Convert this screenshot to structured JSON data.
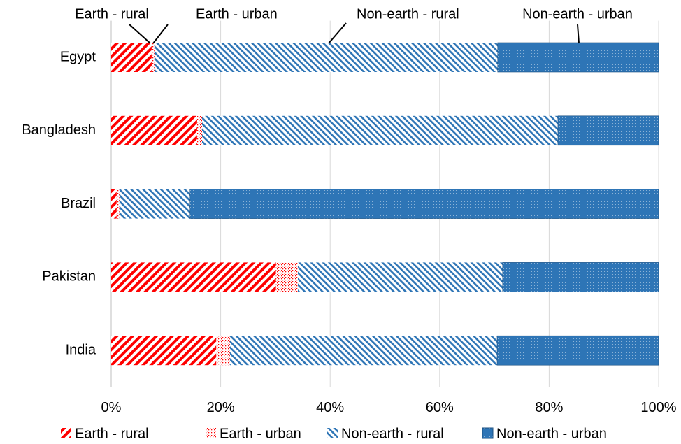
{
  "chart_data": {
    "type": "stacked-bar-horizontal",
    "categories": [
      "Egypt",
      "Bangladesh",
      "Brazil",
      "Pakistan",
      "India"
    ],
    "series": [
      {
        "name": "Earth - rural",
        "color": "#ff0000",
        "pattern": "hatch-down",
        "values": [
          7.4,
          15.7,
          1.0,
          30.1,
          19.2
        ]
      },
      {
        "name": "Earth - urban",
        "color": "#ff0000",
        "pattern": "dots",
        "values": [
          0.5,
          0.9,
          0.5,
          4.0,
          2.5
        ]
      },
      {
        "name": "Non-earth - rural",
        "color": "#2e75b6",
        "pattern": "hatch-up",
        "values": [
          62.7,
          65.0,
          12.9,
          37.4,
          48.8
        ]
      },
      {
        "name": "Non-earth - urban",
        "color": "#2e75b6",
        "pattern": "dots-dense",
        "values": [
          29.4,
          18.4,
          85.6,
          28.5,
          29.5
        ]
      }
    ],
    "xlim": [
      0,
      100
    ],
    "xticks": [
      {
        "value": 0,
        "label": "0%"
      },
      {
        "value": 20,
        "label": "20%"
      },
      {
        "value": 40,
        "label": "40%"
      },
      {
        "value": 60,
        "label": "60%"
      },
      {
        "value": 80,
        "label": "80%"
      },
      {
        "value": 100,
        "label": "100%"
      }
    ],
    "grid": true,
    "legend": "bottom"
  }
}
